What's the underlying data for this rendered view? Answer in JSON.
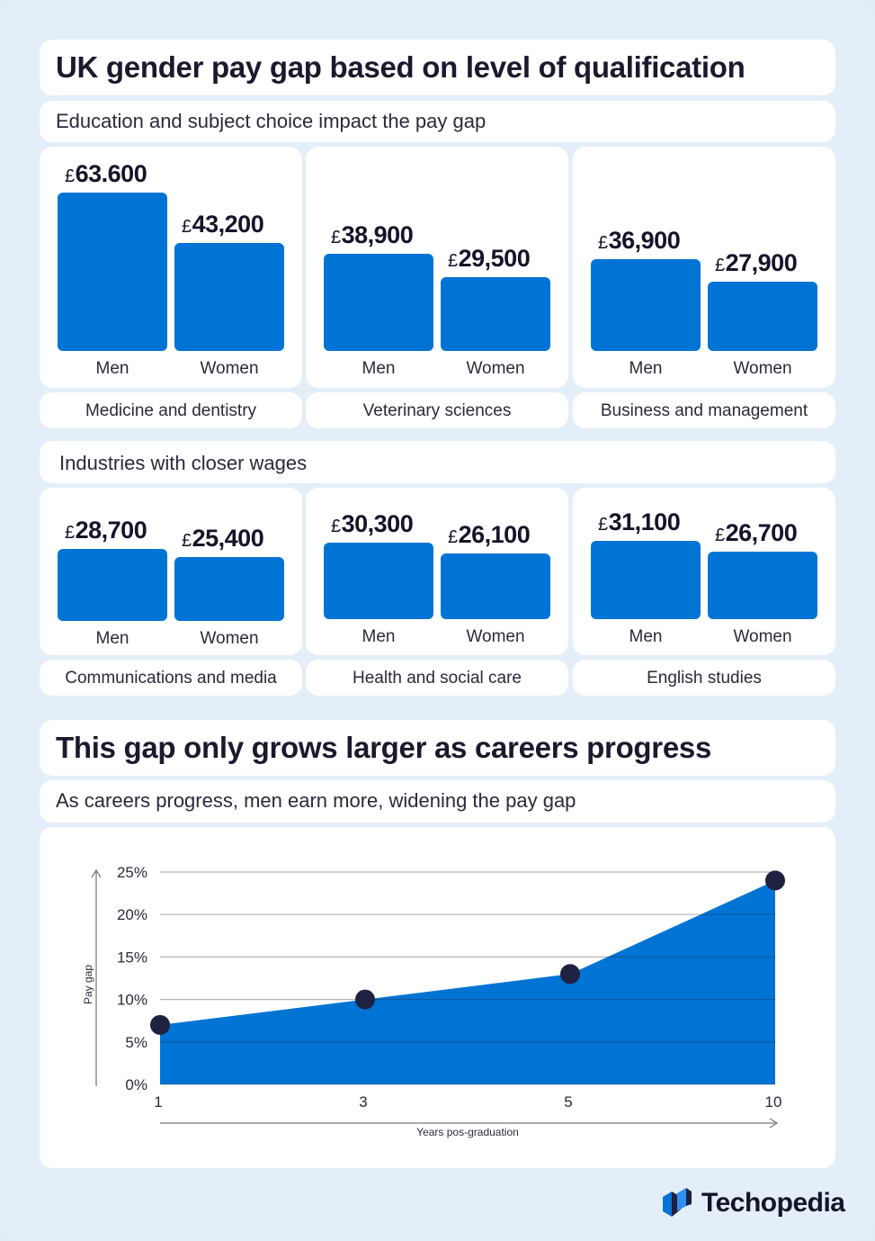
{
  "title": "UK gender pay gap based on level of qualification",
  "section1_subtitle": "Education and subject choice impact the pay gap",
  "section2_subtitle": "Industries with closer wages",
  "title2": "This gap only grows larger as careers progress",
  "subtitle2": "As careers progress, men earn more, widening the pay gap",
  "currency": "£",
  "labels": {
    "men": "Men",
    "women": "Women"
  },
  "brand": {
    "name": "Techopedia",
    "accent": "#0074d4",
    "dark": "#1e2140"
  },
  "chart_data": [
    {
      "type": "bar",
      "title": "Medicine and dentistry",
      "categories": [
        "Men",
        "Women"
      ],
      "values": [
        63600,
        43200
      ],
      "value_labels": [
        "63.600",
        "43,200"
      ],
      "ylim": [
        0,
        63600
      ]
    },
    {
      "type": "bar",
      "title": "Veterinary sciences",
      "categories": [
        "Men",
        "Women"
      ],
      "values": [
        38900,
        29500
      ],
      "value_labels": [
        "38,900",
        "29,500"
      ],
      "ylim": [
        0,
        63600
      ]
    },
    {
      "type": "bar",
      "title": "Business and management",
      "categories": [
        "Men",
        "Women"
      ],
      "values": [
        36900,
        27900
      ],
      "value_labels": [
        "36,900",
        "27,900"
      ],
      "ylim": [
        0,
        63600
      ]
    },
    {
      "type": "bar",
      "title": "Communications and media",
      "categories": [
        "Men",
        "Women"
      ],
      "values": [
        28700,
        25400
      ],
      "value_labels": [
        "28,700",
        "25,400"
      ],
      "ylim": [
        0,
        31100
      ]
    },
    {
      "type": "bar",
      "title": "Health and social care",
      "categories": [
        "Men",
        "Women"
      ],
      "values": [
        30300,
        26100
      ],
      "value_labels": [
        "30,300",
        "26,100"
      ],
      "ylim": [
        0,
        31100
      ]
    },
    {
      "type": "bar",
      "title": "English studies",
      "categories": [
        "Men",
        "Women"
      ],
      "values": [
        31100,
        26700
      ],
      "value_labels": [
        "31,100",
        "26,700"
      ],
      "ylim": [
        0,
        31100
      ]
    },
    {
      "type": "area",
      "title": "This gap only grows larger as careers progress",
      "x": [
        "1",
        "3",
        "5",
        "10"
      ],
      "values": [
        7,
        10,
        13,
        24
      ],
      "xlabel": "Years pos-graduation",
      "ylabel": "Pay gap",
      "ylim": [
        0,
        25
      ],
      "yticks": [
        "0%",
        "5%",
        "10%",
        "15%",
        "20%",
        "25%"
      ],
      "ytick_values": [
        0,
        5,
        10,
        15,
        20,
        25
      ],
      "grid": true
    }
  ]
}
